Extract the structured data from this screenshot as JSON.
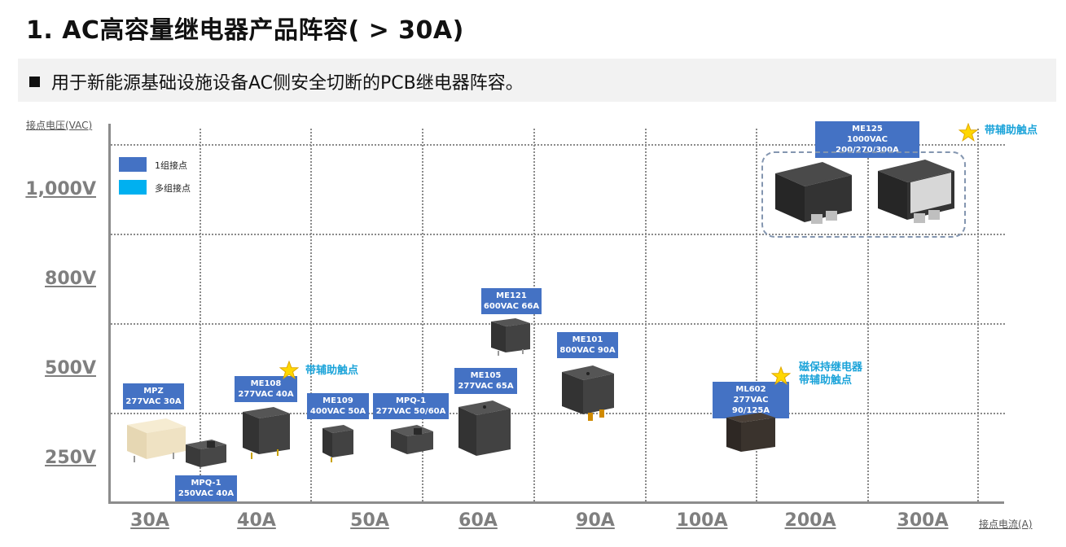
{
  "title": "1.  AC高容量继电器产品阵容( > 30A)",
  "subtitle": "用于新能源基础设施设备AC侧安全切断的PCB继电器阵容。",
  "axes": {
    "y_title": "接点电压(VAC)",
    "x_title": "接点电流(A)",
    "y_labels": [
      "1,000V",
      "800V",
      "500V",
      "250V"
    ],
    "x_labels": [
      "30A",
      "40A",
      "50A",
      "60A",
      "90A",
      "100A",
      "200A",
      "300A"
    ]
  },
  "legend": {
    "single": {
      "label": "1组接点",
      "color": "#4472c4"
    },
    "multi": {
      "label": "多组接点",
      "color": "#00b0f0"
    }
  },
  "products": [
    {
      "name": "MPZ",
      "spec": "277VAC 30A"
    },
    {
      "name": "MPQ-1",
      "spec": "250VAC 40A"
    },
    {
      "name": "ME108",
      "spec": "277VAC 40A"
    },
    {
      "name": "ME109",
      "spec": "400VAC 50A"
    },
    {
      "name": "MPQ-1",
      "spec": "277VAC 50/60A"
    },
    {
      "name": "ME105",
      "spec": "277VAC 65A"
    },
    {
      "name": "ME121",
      "spec": "600VAC 66A"
    },
    {
      "name": "ME101",
      "spec": "800VAC 90A"
    },
    {
      "name": "ML602",
      "spec": "277VAC 90/125A"
    },
    {
      "name": "ME125",
      "spec": "1000VAC 200/270/300A"
    }
  ],
  "notes": {
    "me108": "带辅助触点",
    "ml602_line1": "磁保持继电器",
    "ml602_line2": "带辅助触点",
    "me125": "带辅助触点"
  },
  "colors": {
    "label_blue": "#4472c4",
    "note_cyan": "#1aa3d9",
    "star_yellow": "#ffd700"
  }
}
